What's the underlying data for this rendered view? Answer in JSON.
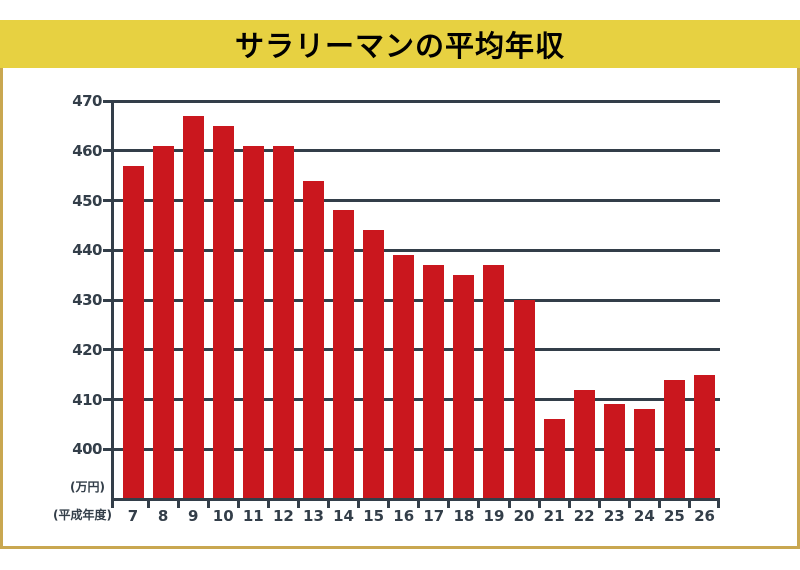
{
  "title": "サラリーマンの平均年収",
  "colors": {
    "banner_bg": "#e7d141",
    "panel_border": "#c9a750",
    "panel_bg": "#ffffff",
    "title_color": "#000000",
    "bar_color": "#ca171e",
    "axis_color": "#333e49"
  },
  "chart_data": {
    "type": "bar",
    "title": "サラリーマンの平均年収",
    "categories": [
      "7",
      "8",
      "9",
      "10",
      "11",
      "12",
      "13",
      "14",
      "15",
      "16",
      "17",
      "18",
      "19",
      "20",
      "21",
      "22",
      "23",
      "24",
      "25",
      "26"
    ],
    "values": [
      457,
      461,
      467,
      465,
      461,
      461,
      454,
      448,
      444,
      439,
      437,
      435,
      437,
      430,
      406,
      412,
      409,
      408,
      414,
      415
    ],
    "xlabel": "(平成年度)",
    "ylabel": "(万円)",
    "ylim": [
      390,
      470
    ],
    "yticks": [
      400,
      410,
      420,
      430,
      440,
      450,
      460,
      470
    ],
    "grid": true,
    "legend": "none",
    "bar_color": "#ca171e"
  }
}
